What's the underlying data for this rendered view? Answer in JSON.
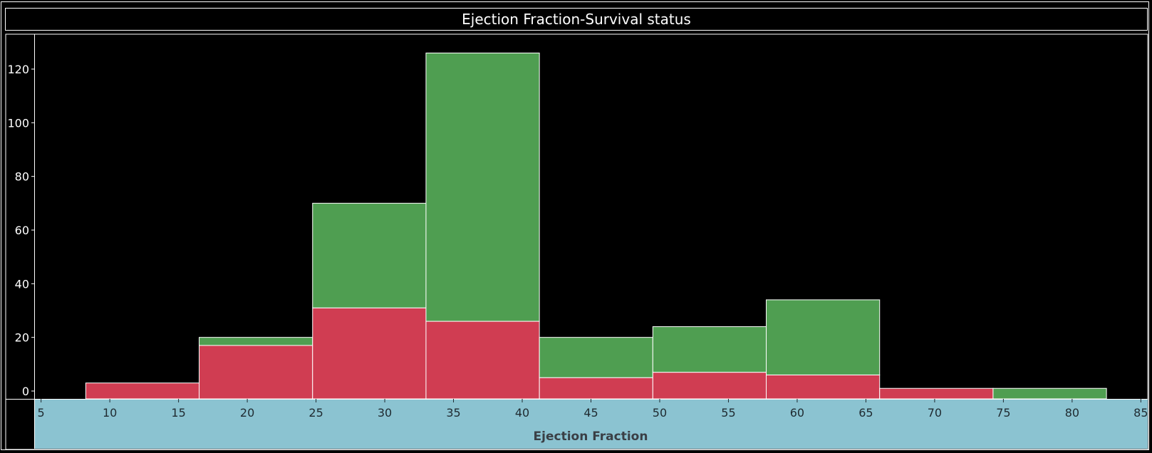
{
  "chart_data": {
    "type": "bar",
    "title": "Ejection Fraction-Survival status",
    "xlabel": "Ejection Fraction",
    "ylabel": "",
    "x_ticks": [
      5,
      10,
      15,
      20,
      25,
      30,
      35,
      40,
      45,
      50,
      55,
      60,
      65,
      70,
      75,
      80,
      85
    ],
    "y_ticks": [
      0,
      20,
      40,
      60,
      80,
      100,
      120
    ],
    "xlim": [
      4.5,
      85.5
    ],
    "ylim": [
      -3,
      134
    ],
    "bins": [
      {
        "start": 8.25,
        "end": 16.5
      },
      {
        "start": 16.5,
        "end": 24.75
      },
      {
        "start": 24.75,
        "end": 33
      },
      {
        "start": 33,
        "end": 41.25
      },
      {
        "start": 41.25,
        "end": 49.5
      },
      {
        "start": 49.5,
        "end": 57.75
      },
      {
        "start": 57.75,
        "end": 66
      },
      {
        "start": 66,
        "end": 74.25
      },
      {
        "start": 74.25,
        "end": 82.5
      }
    ],
    "series": [
      {
        "values": [
          3,
          17,
          31,
          26,
          5,
          7,
          6,
          1,
          0
        ],
        "color": "#d03d52"
      },
      {
        "values": [
          0,
          3,
          39,
          100,
          15,
          17,
          28,
          0,
          1
        ],
        "color": "#4f9e51"
      }
    ],
    "grid": false,
    "colors": {
      "background": "#000000",
      "axis_band": "#8bc3d1",
      "text": "#ffffff",
      "axis_text": "#1f2a30"
    }
  }
}
